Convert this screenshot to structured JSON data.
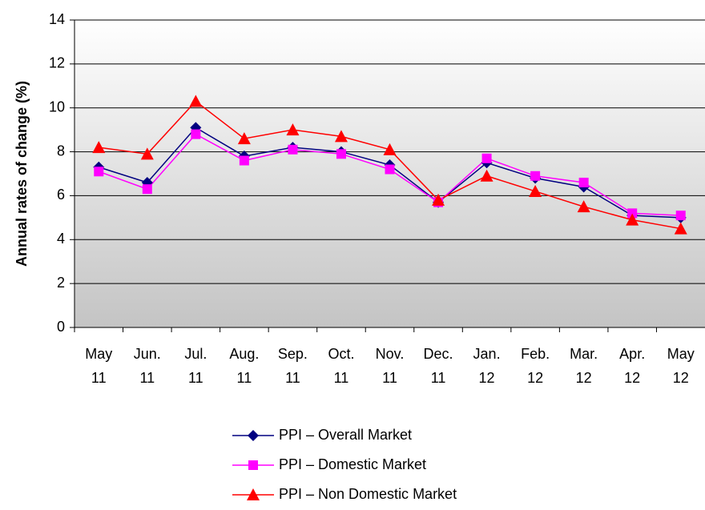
{
  "chart_data": {
    "type": "line",
    "y_label": "Annual rates of change (%)",
    "categories": [
      "May 11",
      "Jun. 11",
      "Jul. 11",
      "Aug. 11",
      "Sep. 11",
      "Oct. 11",
      "Nov. 11",
      "Dec. 11",
      "Jan. 12",
      "Feb. 12",
      "Mar. 12",
      "Apr. 12",
      "May 12"
    ],
    "series": [
      {
        "name": "PPI – Overall Market",
        "color": "#000080",
        "marker": "diamond",
        "values": [
          7.3,
          6.6,
          9.1,
          7.8,
          8.2,
          8.0,
          7.4,
          5.7,
          7.5,
          6.8,
          6.4,
          5.1,
          5.0
        ]
      },
      {
        "name": "PPI – Domestic Market",
        "color": "#ff00ff",
        "marker": "square",
        "values": [
          7.1,
          6.3,
          8.8,
          7.6,
          8.1,
          7.9,
          7.2,
          5.7,
          7.7,
          6.9,
          6.6,
          5.2,
          5.1
        ]
      },
      {
        "name": "PPI – Non Domestic Market",
        "color": "#ff0000",
        "marker": "triangle",
        "values": [
          8.2,
          7.9,
          10.3,
          8.6,
          9.0,
          8.7,
          8.1,
          5.8,
          6.9,
          6.2,
          5.5,
          4.9,
          4.5
        ]
      }
    ],
    "ylim": [
      0,
      14
    ],
    "yticks": [
      0,
      2,
      4,
      6,
      8,
      10,
      12,
      14
    ],
    "grid": true,
    "legend": "bottom"
  }
}
